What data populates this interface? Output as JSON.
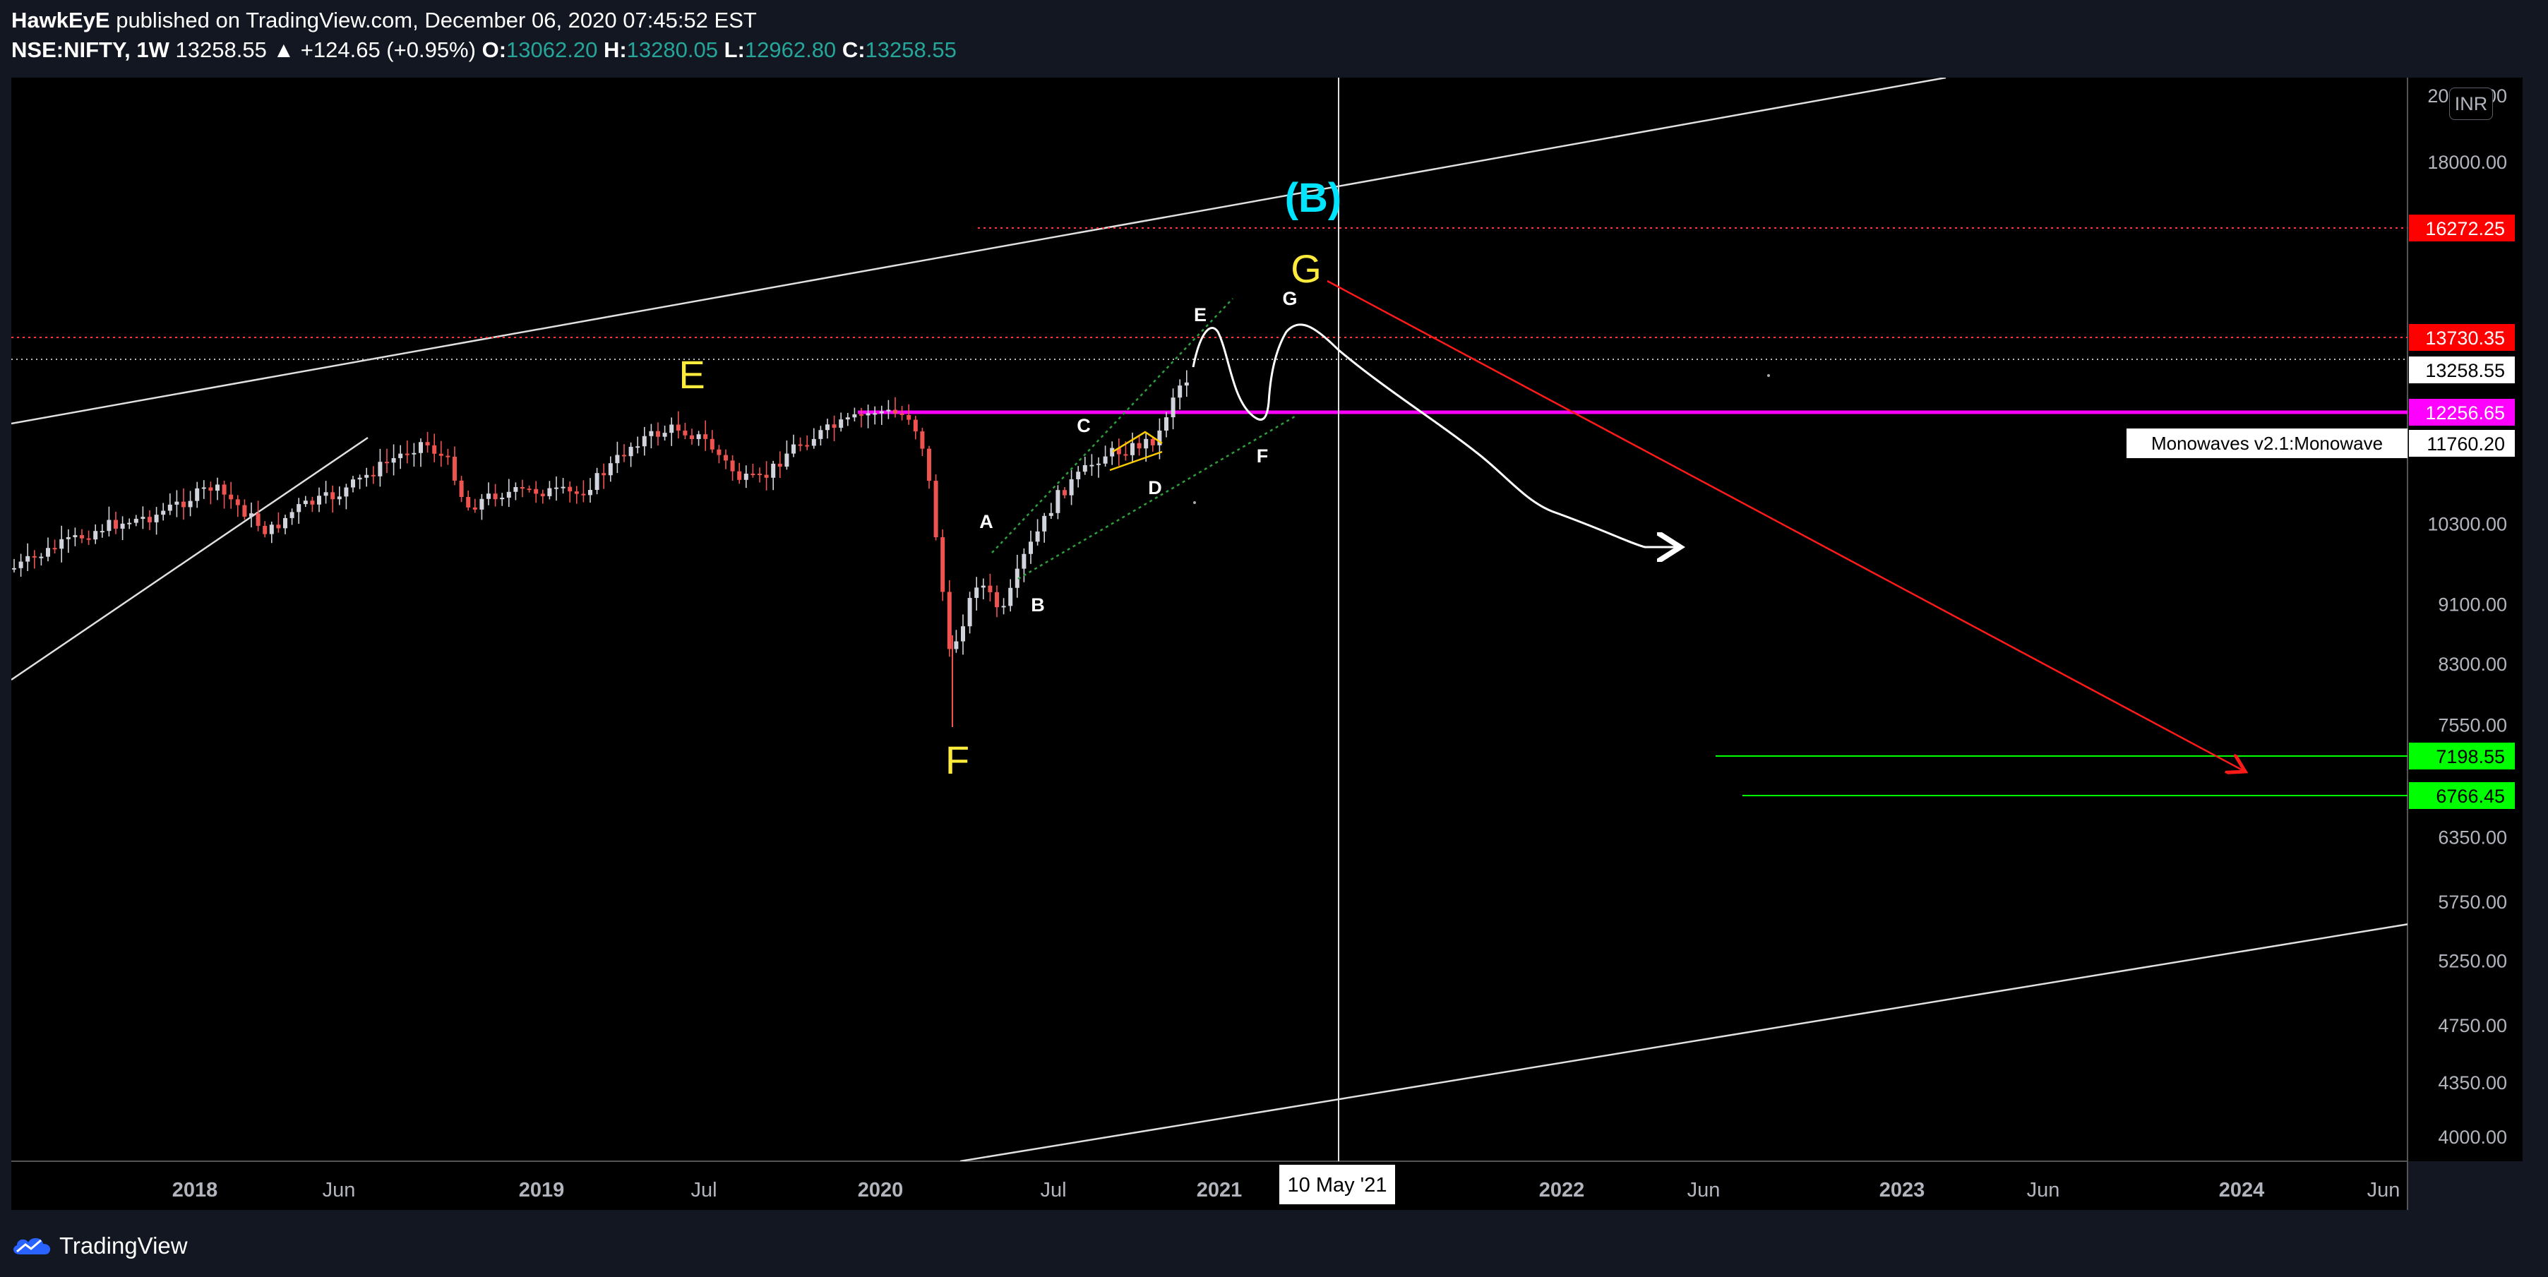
{
  "header": {
    "author": "HawkEyE",
    "published_text": "published on TradingView.com, December 06, 2020 07:45:52 EST",
    "symbol": "NSE:NIFTY, 1W",
    "last_price": "13258.55",
    "change": "▲ +124.65 (+0.95%)",
    "open_label": "O:",
    "open_value": "13062.20",
    "high_label": "H:",
    "high_value": "13280.05",
    "low_label": "L:",
    "low_value": "12962.80",
    "close_label": "C:",
    "close_value": "13258.55"
  },
  "currency_badge": "INR",
  "price_axis": {
    "ticks": [
      {
        "label": "20000.00",
        "price": 20000
      },
      {
        "label": "18000.00",
        "price": 18000
      },
      {
        "label": "10300.00",
        "price": 10300
      },
      {
        "label": "9100.00",
        "price": 9100
      },
      {
        "label": "8300.00",
        "price": 8300
      },
      {
        "label": "7550.00",
        "price": 7550
      },
      {
        "label": "6350.00",
        "price": 6350
      },
      {
        "label": "5750.00",
        "price": 5750
      },
      {
        "label": "5250.00",
        "price": 5250
      },
      {
        "label": "4750.00",
        "price": 4750
      },
      {
        "label": "4350.00",
        "price": 4350
      },
      {
        "label": "4000.00",
        "price": 4000
      }
    ],
    "badges": [
      {
        "label": "16272.25",
        "price": 16272.25,
        "bg": "#ff0000",
        "fg": "#ffffff"
      },
      {
        "label": "13730.35",
        "price": 13730.35,
        "bg": "#ff0000",
        "fg": "#ffffff"
      },
      {
        "label": "13258.55",
        "price": 13258.55,
        "bg": "#ffffff",
        "fg": "#000000"
      },
      {
        "label": "12256.65",
        "price": 12256.65,
        "bg": "#ff00ff",
        "fg": "#ffffff"
      },
      {
        "label": "11760.20",
        "price": 11760.2,
        "bg": "#ffffff",
        "fg": "#000000"
      },
      {
        "label": "7198.55",
        "price": 7198.55,
        "bg": "#00ff00",
        "fg": "#000000"
      },
      {
        "label": "6766.45",
        "price": 6766.45,
        "bg": "#00ff00",
        "fg": "#000000"
      }
    ],
    "indicator_tag": "Monowaves v2.1:Monowave"
  },
  "time_axis": {
    "ticks": [
      "2018",
      "Jun",
      "2019",
      "Jul",
      "2020",
      "Jul",
      "2021",
      "2022",
      "Jun",
      "2023",
      "Jun",
      "2024",
      "Jun"
    ],
    "crosshair_label": "10 May '21"
  },
  "wave_labels": {
    "big": [
      {
        "text": "(B)",
        "color": "#00e5ff"
      },
      {
        "text": "G",
        "color": "#ffeb3b"
      },
      {
        "text": "E",
        "color": "#ffeb3b"
      },
      {
        "text": "F",
        "color": "#ffeb3b"
      }
    ],
    "small": [
      "A",
      "B",
      "C",
      "D",
      "E",
      "F",
      "G"
    ]
  },
  "colors": {
    "background": "#000000",
    "frame": "#131722",
    "magenta_level": "#ff00ff",
    "red_projection": "#ff1a1a",
    "green_targets": "#00ff00",
    "candle_up": "#d1d4dc",
    "candle_down": "#ef5350"
  },
  "footer": {
    "logo_text": "TradingView"
  }
}
